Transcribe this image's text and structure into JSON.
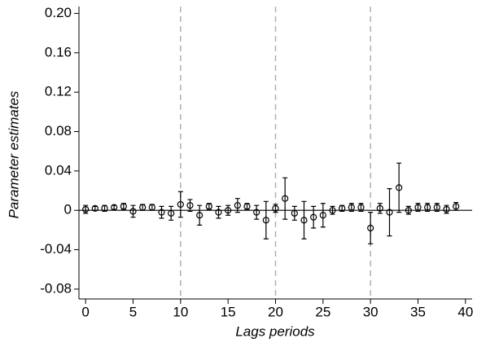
{
  "chart_data": {
    "type": "errorbar-scatter",
    "x_label": "Lags periods",
    "y_label": "Parameter estimates",
    "x": [
      0,
      1,
      2,
      3,
      4,
      5,
      6,
      7,
      8,
      9,
      10,
      11,
      12,
      13,
      14,
      15,
      16,
      17,
      18,
      19,
      20,
      21,
      22,
      23,
      24,
      25,
      26,
      27,
      28,
      29,
      30,
      31,
      32,
      33,
      34,
      35,
      36,
      37,
      38,
      39
    ],
    "values": [
      0.001,
      0.002,
      0.002,
      0.003,
      0.004,
      -0.001,
      0.003,
      0.003,
      -0.002,
      -0.003,
      0.006,
      0.005,
      -0.005,
      0.004,
      -0.002,
      0.0,
      0.005,
      0.004,
      -0.002,
      -0.01,
      0.002,
      0.012,
      -0.003,
      -0.01,
      -0.007,
      -0.005,
      0.0,
      0.002,
      0.003,
      0.003,
      -0.018,
      0.002,
      -0.002,
      0.023,
      0.0,
      0.003,
      0.003,
      0.003,
      0.001,
      0.004
    ],
    "errors": [
      0.004,
      0.002,
      0.003,
      0.002,
      0.003,
      0.006,
      0.003,
      0.003,
      0.006,
      0.007,
      0.013,
      0.006,
      0.01,
      0.003,
      0.006,
      0.005,
      0.007,
      0.003,
      0.007,
      0.019,
      0.004,
      0.021,
      0.007,
      0.019,
      0.011,
      0.012,
      0.004,
      0.003,
      0.004,
      0.004,
      0.016,
      0.005,
      0.024,
      0.025,
      0.004,
      0.004,
      0.004,
      0.004,
      0.004,
      0.004
    ],
    "color": "#000000",
    "xlim": [
      -0.7,
      40.7
    ],
    "ylim": [
      -0.09,
      0.207
    ],
    "xticks": [
      0,
      5,
      10,
      15,
      20,
      25,
      30,
      35,
      40
    ],
    "yticks": [
      {
        "value": 0.2,
        "label": "0.20"
      },
      0.16,
      0.12,
      0.08,
      0.04,
      0,
      -0.04,
      -0.08
    ],
    "reference_lines_x": [
      10,
      20,
      30
    ],
    "reference_line_y": 0
  }
}
